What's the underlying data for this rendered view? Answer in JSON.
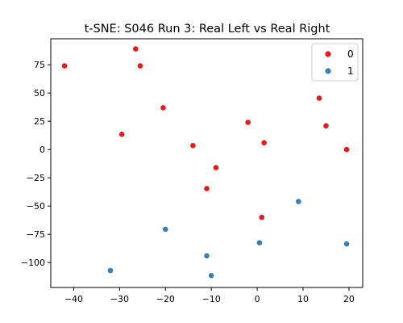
{
  "chart_data": {
    "type": "scatter",
    "title": "t-SNE: S046 Run 3: Real Left vs Real Right",
    "xlabel": "",
    "ylabel": "",
    "xlim": [
      -45,
      23
    ],
    "ylim": [
      -122,
      98
    ],
    "xticks": [
      -40,
      -30,
      -20,
      -10,
      0,
      10,
      20
    ],
    "yticks": [
      -100,
      -75,
      -50,
      -25,
      0,
      25,
      50,
      75
    ],
    "grid": false,
    "legend_position": "top-right",
    "series": [
      {
        "name": "0",
        "color": "#e41a1c",
        "points": [
          {
            "x": -42.0,
            "y": 74.0
          },
          {
            "x": -26.5,
            "y": 89.0
          },
          {
            "x": -25.5,
            "y": 74.0
          },
          {
            "x": -20.5,
            "y": 37.0
          },
          {
            "x": -29.5,
            "y": 13.5
          },
          {
            "x": -14.0,
            "y": 3.5
          },
          {
            "x": -9.0,
            "y": -16.0
          },
          {
            "x": -11.0,
            "y": -34.5
          },
          {
            "x": -2.0,
            "y": 24.0
          },
          {
            "x": 1.5,
            "y": 6.0
          },
          {
            "x": 13.5,
            "y": 45.5
          },
          {
            "x": 15.0,
            "y": 21.0
          },
          {
            "x": 19.5,
            "y": 0.0
          },
          {
            "x": 1.0,
            "y": -60.0
          }
        ]
      },
      {
        "name": "1",
        "color": "#377eb8",
        "points": [
          {
            "x": 9.0,
            "y": -46.0
          },
          {
            "x": -20.0,
            "y": -70.5
          },
          {
            "x": 0.5,
            "y": -82.5
          },
          {
            "x": 19.5,
            "y": -83.5
          },
          {
            "x": -11.0,
            "y": -94.0
          },
          {
            "x": -32.0,
            "y": -107.0
          },
          {
            "x": -10.0,
            "y": -111.5
          }
        ]
      }
    ]
  }
}
